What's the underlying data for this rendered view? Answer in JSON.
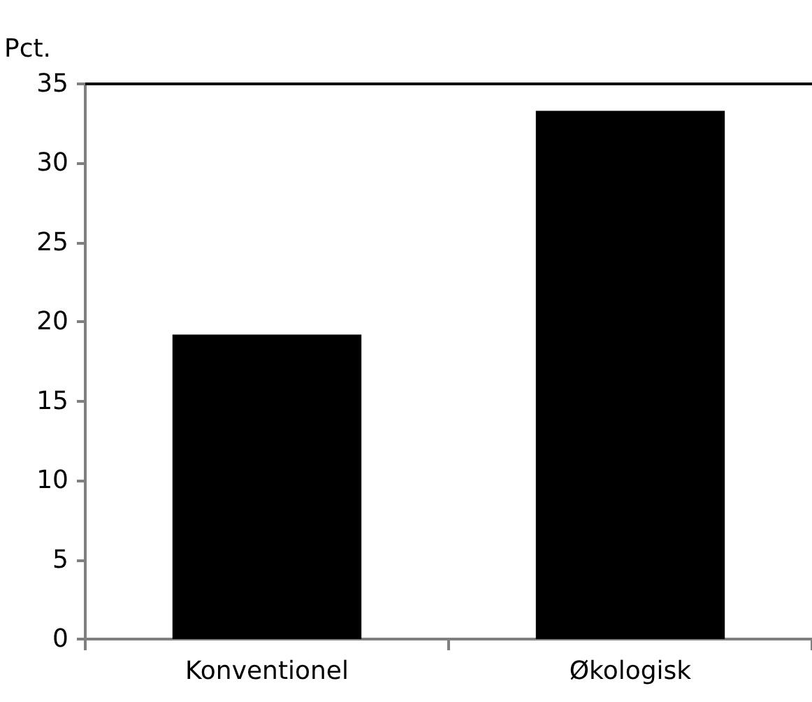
{
  "chart_data": {
    "type": "bar",
    "ylabel": "Pct.",
    "categories": [
      "Konventionel",
      "Økologisk"
    ],
    "values": [
      19.2,
      33.3
    ],
    "color": "#000000",
    "ylim": [
      0,
      35
    ],
    "yticks": [
      0,
      5,
      10,
      15,
      20,
      25,
      30,
      35
    ],
    "grid": false
  }
}
